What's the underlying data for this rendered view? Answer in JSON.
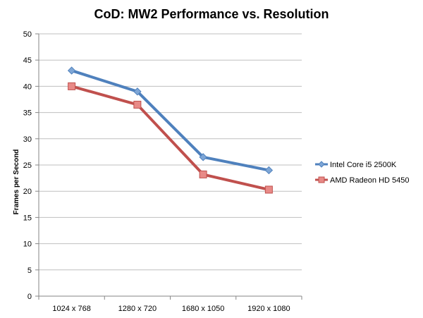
{
  "chart_data": {
    "type": "line",
    "title": "CoD: MW2 Performance vs. Resolution",
    "xlabel": "",
    "ylabel": "Frames per Second",
    "categories": [
      "1024 x 768",
      "1280 x 720",
      "1680 x 1050",
      "1920 x 1080"
    ],
    "ylim": [
      0,
      50
    ],
    "yticks": [
      0,
      5,
      10,
      15,
      20,
      25,
      30,
      35,
      40,
      45,
      50
    ],
    "grid": true,
    "legend_position": "right",
    "series": [
      {
        "name": "Intel Core i5 2500K",
        "values": [
          43,
          39,
          26.5,
          24
        ],
        "color": "#4f81bd",
        "marker": "diamond"
      },
      {
        "name": "AMD Radeon HD 5450",
        "values": [
          40,
          36.5,
          23.2,
          20.3
        ],
        "color": "#c0504d",
        "marker": "square"
      }
    ]
  }
}
